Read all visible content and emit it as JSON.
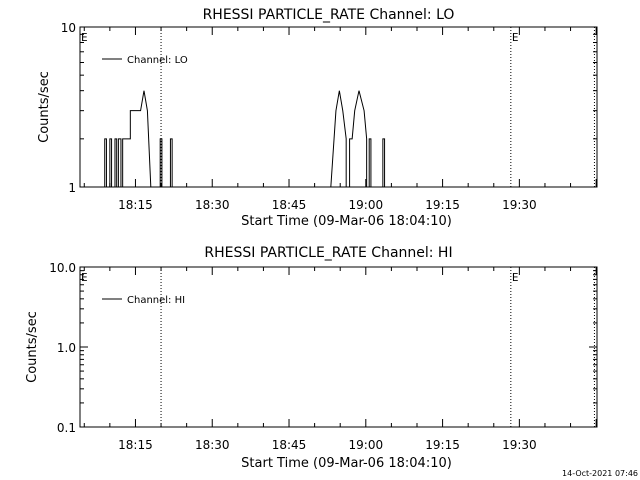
{
  "footer": {
    "timestamp": "14-Oct-2021 07:46"
  },
  "chart_data": [
    {
      "type": "line",
      "title": "RHESSI PARTICLE_RATE Channel: LO",
      "xlabel": "Start Time (09-Mar-06 18:04:10)",
      "ylabel": "Counts/sec",
      "yscale": "log",
      "ylim": [
        1,
        10
      ],
      "xlim": [
        "18:04:10",
        "19:45:10"
      ],
      "x_tick_labels": [
        "18:15",
        "18:30",
        "18:45",
        "19:00",
        "19:15",
        "19:30"
      ],
      "y_tick_labels": [
        "1",
        "10"
      ],
      "grid": false,
      "legend": {
        "position": "top-left",
        "entries": [
          "Channel: LO"
        ]
      },
      "series": [
        {
          "name": "Channel: LO",
          "color": "#000000",
          "points": [
            [
              "18:09:00",
              1
            ],
            [
              "18:09:00",
              2
            ],
            [
              "18:09:20",
              2
            ],
            [
              "18:09:20",
              1
            ],
            [
              "18:10:00",
              1
            ],
            [
              "18:10:00",
              2
            ],
            [
              "18:10:20",
              2
            ],
            [
              "18:10:20",
              1
            ],
            [
              "18:11:00",
              1
            ],
            [
              "18:11:00",
              2
            ],
            [
              "18:11:20",
              2
            ],
            [
              "18:11:20",
              1
            ],
            [
              "18:11:40",
              1
            ],
            [
              "18:11:40",
              2
            ],
            [
              "18:12:10",
              2
            ],
            [
              "18:12:10",
              1
            ],
            [
              "18:12:30",
              1
            ],
            [
              "18:12:30",
              2
            ],
            [
              "18:14:00",
              2
            ],
            [
              "18:14:00",
              3
            ],
            [
              "18:16:00",
              3
            ],
            [
              "18:16:40",
              4
            ],
            [
              "18:17:20",
              3
            ],
            [
              "18:18:00",
              1
            ],
            [
              "18:19:50",
              1
            ],
            [
              "18:19:50",
              2
            ],
            [
              "18:20:10",
              2
            ],
            [
              "18:20:10",
              1
            ],
            [
              "18:21:50",
              1
            ],
            [
              "18:21:50",
              2
            ],
            [
              "18:22:10",
              2
            ],
            [
              "18:22:10",
              1
            ],
            [
              "18:53:10",
              1
            ],
            [
              "18:54:10",
              3
            ],
            [
              "18:54:50",
              4
            ],
            [
              "18:55:30",
              3
            ],
            [
              "18:56:10",
              2
            ],
            [
              "18:56:10",
              1
            ],
            [
              "18:56:50",
              1
            ],
            [
              "18:56:50",
              2
            ],
            [
              "18:57:20",
              2
            ],
            [
              "18:57:50",
              3
            ],
            [
              "18:58:40",
              4
            ],
            [
              "18:59:40",
              3
            ],
            [
              "19:00:10",
              2
            ],
            [
              "19:00:10",
              1
            ],
            [
              "19:00:40",
              1
            ],
            [
              "19:00:40",
              2
            ],
            [
              "19:01:00",
              2
            ],
            [
              "19:01:00",
              1
            ],
            [
              "19:03:20",
              1
            ],
            [
              "19:03:20",
              2
            ],
            [
              "19:03:40",
              2
            ],
            [
              "19:03:40",
              1
            ]
          ]
        }
      ],
      "vertical_markers": [
        {
          "x": "18:20:00",
          "style": "dotted",
          "label": ""
        },
        {
          "x": "19:28:20",
          "style": "dotted",
          "label": "E"
        },
        {
          "x": "19:44:40",
          "style": "dotted",
          "label": ""
        }
      ],
      "start_marker_label": "E"
    },
    {
      "type": "line",
      "title": "RHESSI PARTICLE_RATE Channel: HI",
      "xlabel": "Start Time (09-Mar-06 18:04:10)",
      "ylabel": "Counts/sec",
      "yscale": "log",
      "ylim": [
        0.1,
        10
      ],
      "xlim": [
        "18:04:10",
        "19:45:10"
      ],
      "x_tick_labels": [
        "18:15",
        "18:30",
        "18:45",
        "19:00",
        "19:15",
        "19:30"
      ],
      "y_tick_labels": [
        "0.1",
        "1.0",
        "10.0"
      ],
      "grid": false,
      "legend": {
        "position": "top-left",
        "entries": [
          "Channel: HI"
        ]
      },
      "series": [
        {
          "name": "Channel: HI",
          "color": "#000000",
          "points": []
        }
      ],
      "vertical_markers": [
        {
          "x": "18:20:00",
          "style": "dotted",
          "label": ""
        },
        {
          "x": "19:28:20",
          "style": "dotted",
          "label": "E"
        },
        {
          "x": "19:44:40",
          "style": "dotted",
          "label": ""
        }
      ],
      "start_marker_label": "E"
    }
  ]
}
